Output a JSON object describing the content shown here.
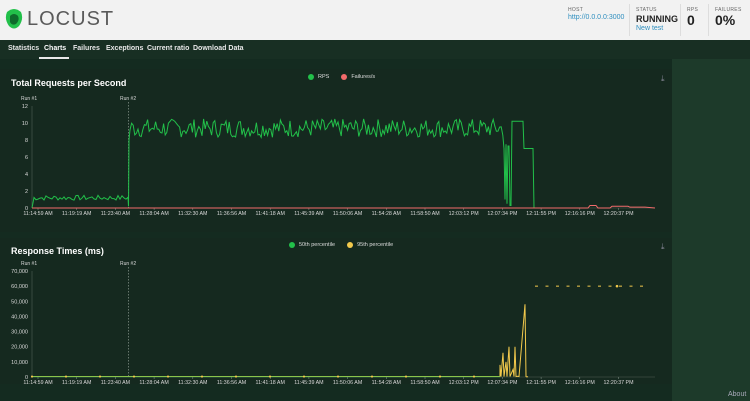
{
  "app": {
    "name": "LOCUST"
  },
  "header": {
    "host_label": "HOST",
    "host_value": "http://0.0.0.0:3000",
    "status_label": "STATUS",
    "status_value": "RUNNING",
    "new_test": "New test",
    "rps_label": "RPS",
    "rps_value": "0",
    "failures_label": "FAILURES",
    "failures_value": "0%"
  },
  "nav": {
    "tabs": [
      "Statistics",
      "Charts",
      "Failures",
      "Exceptions",
      "Current ratio",
      "Download Data"
    ],
    "active": "Charts"
  },
  "footer": {
    "about": "About"
  },
  "colors": {
    "green": "#22c04a",
    "red": "#f26b6b",
    "yellow": "#f2c94c"
  },
  "chart_data": [
    {
      "type": "line",
      "title": "Total Requests per Second",
      "series": [
        {
          "name": "RPS",
          "color": "#22c04a"
        },
        {
          "name": "Failures/s",
          "color": "#f26b6b"
        }
      ],
      "x": [
        "11:14:59 AM",
        "11:19:19 AM",
        "11:23:40 AM",
        "11:28:04 AM",
        "11:32:30 AM",
        "11:36:56 AM",
        "11:41:18 AM",
        "11:45:39 AM",
        "11:50:06 AM",
        "11:54:28 AM",
        "11:58:50 AM",
        "12:03:12 PM",
        "12:07:34 PM",
        "12:11:55 PM",
        "12:16:16 PM",
        "12:20:37 PM"
      ],
      "yticks": [
        0,
        2,
        4,
        6,
        8,
        10,
        12
      ],
      "ylim": [
        0,
        12
      ],
      "markers": [
        "Run #1",
        "Run #2"
      ],
      "approx_values": {
        "RPS_run1": 1,
        "RPS_run2": 9.5,
        "spike_max": 10.2,
        "Failures_s": 0.1
      }
    },
    {
      "type": "line",
      "title": "Response Times (ms)",
      "series": [
        {
          "name": "50th percentile",
          "color": "#22c04a"
        },
        {
          "name": "95th percentile",
          "color": "#f2c94c"
        }
      ],
      "x": [
        "11:14:59 AM",
        "11:19:19 AM",
        "11:23:40 AM",
        "11:28:04 AM",
        "11:32:30 AM",
        "11:36:56 AM",
        "11:41:18 AM",
        "11:45:39 AM",
        "11:50:06 AM",
        "11:54:28 AM",
        "11:58:50 AM",
        "12:03:12 PM",
        "12:07:34 PM",
        "12:11:55 PM",
        "12:16:16 PM",
        "12:20:37 PM"
      ],
      "yticks": [
        0,
        10000,
        20000,
        30000,
        40000,
        50000,
        60000,
        70000
      ],
      "ytick_labels": [
        "0",
        "10,000",
        "20,000",
        "30,000",
        "40,000",
        "50,000",
        "60,000",
        "70,000"
      ],
      "ylim": [
        0,
        70000
      ],
      "markers": [
        "Run #1",
        "Run #2"
      ],
      "approx_values": {
        "p95_spike": 48000,
        "p95_tail": 60000
      }
    }
  ]
}
